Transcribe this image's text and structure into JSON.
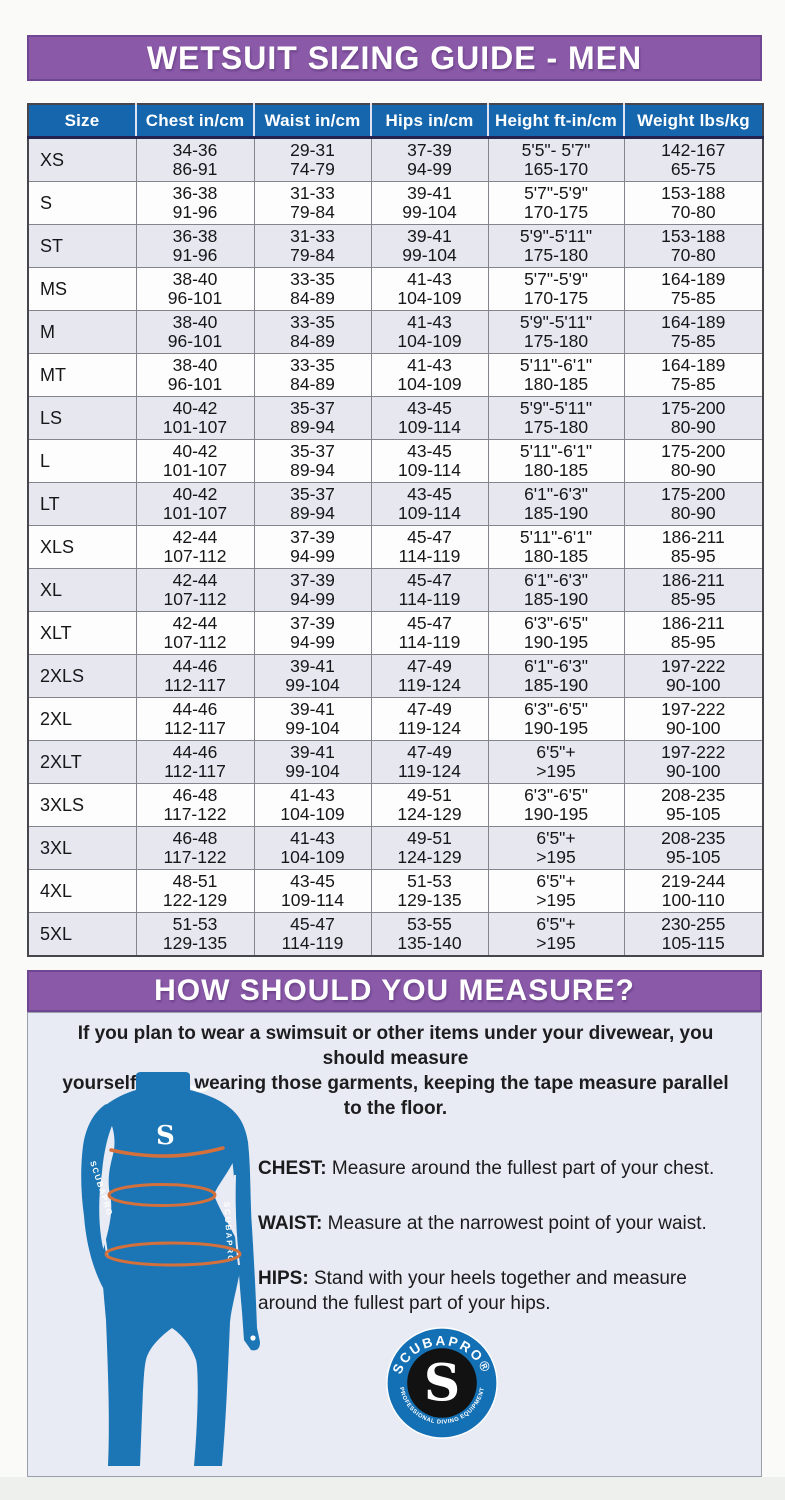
{
  "banners": {
    "title": "WETSUIT SIZING GUIDE - MEN",
    "measure": "HOW SHOULD YOU MEASURE?"
  },
  "table": {
    "columns": [
      "Size",
      "Chest in/cm",
      "Waist in/cm",
      "Hips in/cm",
      "Height ft-in/cm",
      "Weight lbs/kg"
    ],
    "rows": [
      {
        "size": "XS",
        "chest": "34-36\n86-91",
        "waist": "29-31\n74-79",
        "hips": "37-39\n94-99",
        "height": "5'5\"- 5'7\"\n165-170",
        "weight": "142-167\n65-75"
      },
      {
        "size": "S",
        "chest": "36-38\n91-96",
        "waist": "31-33\n79-84",
        "hips": "39-41\n99-104",
        "height": "5'7\"-5'9\"\n170-175",
        "weight": "153-188\n70-80"
      },
      {
        "size": "ST",
        "chest": "36-38\n91-96",
        "waist": "31-33\n79-84",
        "hips": "39-41\n99-104",
        "height": "5'9\"-5'11\"\n175-180",
        "weight": "153-188\n70-80"
      },
      {
        "size": "MS",
        "chest": "38-40\n96-101",
        "waist": "33-35\n84-89",
        "hips": "41-43\n104-109",
        "height": "5'7\"-5'9\"\n170-175",
        "weight": "164-189\n75-85"
      },
      {
        "size": "M",
        "chest": "38-40\n96-101",
        "waist": "33-35\n84-89",
        "hips": "41-43\n104-109",
        "height": "5'9\"-5'11\"\n175-180",
        "weight": "164-189\n75-85"
      },
      {
        "size": "MT",
        "chest": "38-40\n96-101",
        "waist": "33-35\n84-89",
        "hips": "41-43\n104-109",
        "height": "5'11\"-6'1\"\n180-185",
        "weight": "164-189\n75-85"
      },
      {
        "size": "LS",
        "chest": "40-42\n101-107",
        "waist": "35-37\n89-94",
        "hips": "43-45\n109-114",
        "height": "5'9\"-5'11\"\n175-180",
        "weight": "175-200\n80-90"
      },
      {
        "size": "L",
        "chest": "40-42\n101-107",
        "waist": "35-37\n89-94",
        "hips": "43-45\n109-114",
        "height": "5'11\"-6'1\"\n180-185",
        "weight": "175-200\n80-90"
      },
      {
        "size": "LT",
        "chest": "40-42\n101-107",
        "waist": "35-37\n89-94",
        "hips": "43-45\n109-114",
        "height": "6'1\"-6'3\"\n185-190",
        "weight": "175-200\n80-90"
      },
      {
        "size": "XLS",
        "chest": "42-44\n107-112",
        "waist": "37-39\n94-99",
        "hips": "45-47\n114-119",
        "height": "5'11\"-6'1\"\n180-185",
        "weight": "186-211\n85-95"
      },
      {
        "size": "XL",
        "chest": "42-44\n107-112",
        "waist": "37-39\n94-99",
        "hips": "45-47\n114-119",
        "height": "6'1\"-6'3\"\n185-190",
        "weight": "186-211\n85-95"
      },
      {
        "size": "XLT",
        "chest": "42-44\n107-112",
        "waist": "37-39\n94-99",
        "hips": "45-47\n114-119",
        "height": "6'3\"-6'5\"\n190-195",
        "weight": "186-211\n85-95"
      },
      {
        "size": "2XLS",
        "chest": "44-46\n112-117",
        "waist": "39-41\n99-104",
        "hips": "47-49\n119-124",
        "height": "6'1\"-6'3\"\n185-190",
        "weight": "197-222\n90-100"
      },
      {
        "size": "2XL",
        "chest": "44-46\n112-117",
        "waist": "39-41\n99-104",
        "hips": "47-49\n119-124",
        "height": "6'3\"-6'5\"\n190-195",
        "weight": "197-222\n90-100"
      },
      {
        "size": "2XLT",
        "chest": "44-46\n112-117",
        "waist": "39-41\n99-104",
        "hips": "47-49\n119-124",
        "height": "6'5\"+\n>195",
        "weight": "197-222\n90-100"
      },
      {
        "size": "3XLS",
        "chest": "46-48\n117-122",
        "waist": "41-43\n104-109",
        "hips": "49-51\n124-129",
        "height": "6'3\"-6'5\"\n190-195",
        "weight": "208-235\n95-105"
      },
      {
        "size": "3XL",
        "chest": "46-48\n117-122",
        "waist": "41-43\n104-109",
        "hips": "49-51\n124-129",
        "height": "6'5\"+\n>195",
        "weight": "208-235\n95-105"
      },
      {
        "size": "4XL",
        "chest": "48-51\n122-129",
        "waist": "43-45\n109-114",
        "hips": "51-53\n129-135",
        "height": "6'5\"+\n>195",
        "weight": "219-244\n100-110"
      },
      {
        "size": "5XL",
        "chest": "51-53\n129-135",
        "waist": "45-47\n114-119",
        "hips": "53-55\n135-140",
        "height": "6'5\"+\n>195",
        "weight": "230-255\n105-115"
      }
    ]
  },
  "measure": {
    "intro": "If you plan to wear a swimsuit or other items under your divewear, you should measure\nyourself while wearing those garments, keeping the tape measure parallel to the floor.",
    "items": [
      {
        "label": "CHEST:",
        "text": " Measure around the fullest part of your chest."
      },
      {
        "label": "WAIST:",
        "text": " Measure at the narrowest point of your waist."
      },
      {
        "label": "HIPS:",
        "text": " Stand with your heels together and measure\naround the fullest part of your hips."
      }
    ]
  },
  "figure": {
    "chest_logo": "S",
    "arm_text": "SCUBAPRO",
    "seam_text": "SCUBAPRO"
  },
  "logo": {
    "top_text": "SCUBAPRO®",
    "bottom_text": "PROFESSIONAL DIVING EQUIPMENT",
    "letter": "S"
  },
  "colors": {
    "banner_purple": "#8a5aa8",
    "header_blue": "#1566ad",
    "row_alt": "#e6e7ef",
    "panel_bg": "#e9ebf4",
    "figure_blue": "#1c76b5",
    "measure_orange": "#d4703c",
    "logo_blue": "#1470b4"
  }
}
